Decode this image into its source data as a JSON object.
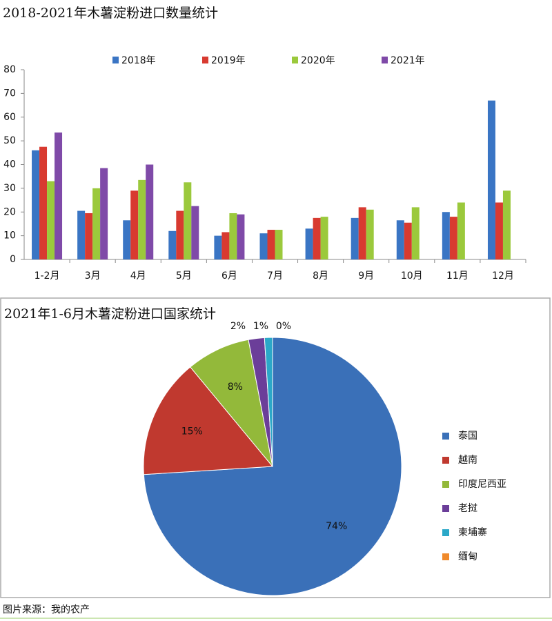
{
  "chart_data": [
    {
      "type": "bar",
      "title": "2018-2021年木薯淀粉进口数量统计",
      "categories": [
        "1-2月",
        "3月",
        "4月",
        "5月",
        "6月",
        "7月",
        "8月",
        "9月",
        "10月",
        "11月",
        "12月"
      ],
      "series": [
        {
          "name": "2018年",
          "color": "#3a75c4",
          "values": [
            46,
            20.5,
            16.5,
            12,
            10,
            11,
            13,
            17.5,
            16.5,
            20,
            67
          ]
        },
        {
          "name": "2019年",
          "color": "#d83a30",
          "values": [
            47.5,
            19.5,
            29,
            20.5,
            11.5,
            12.5,
            17.5,
            22,
            15.5,
            18,
            24
          ]
        },
        {
          "name": "2020年",
          "color": "#9bc93c",
          "values": [
            33,
            30,
            33.5,
            32.5,
            19.5,
            12.5,
            18,
            21,
            22,
            24,
            29
          ]
        },
        {
          "name": "2021年",
          "color": "#7f4aa8",
          "values": [
            53.5,
            38.5,
            40,
            22.5,
            19,
            null,
            null,
            null,
            null,
            null,
            null
          ]
        }
      ],
      "ylim": [
        0,
        80
      ],
      "yticks": [
        0,
        10,
        20,
        30,
        40,
        50,
        60,
        70,
        80
      ]
    },
    {
      "type": "pie",
      "title": "2021年1-6月木薯淀粉进口国家统计",
      "categories": [
        "泰国",
        "越南",
        "印度尼西亚",
        "老挝",
        "柬埔寨",
        "缅甸"
      ],
      "values": [
        74,
        15,
        8,
        2,
        1,
        0
      ],
      "value_labels": [
        "74%",
        "15%",
        "8%",
        "2%",
        "1%",
        "0%"
      ],
      "colors": [
        "#3a70b8",
        "#c0392f",
        "#93b93a",
        "#6b3e99",
        "#2ba8c8",
        "#f08a2b"
      ]
    }
  ],
  "source": "图片来源：我的农产"
}
